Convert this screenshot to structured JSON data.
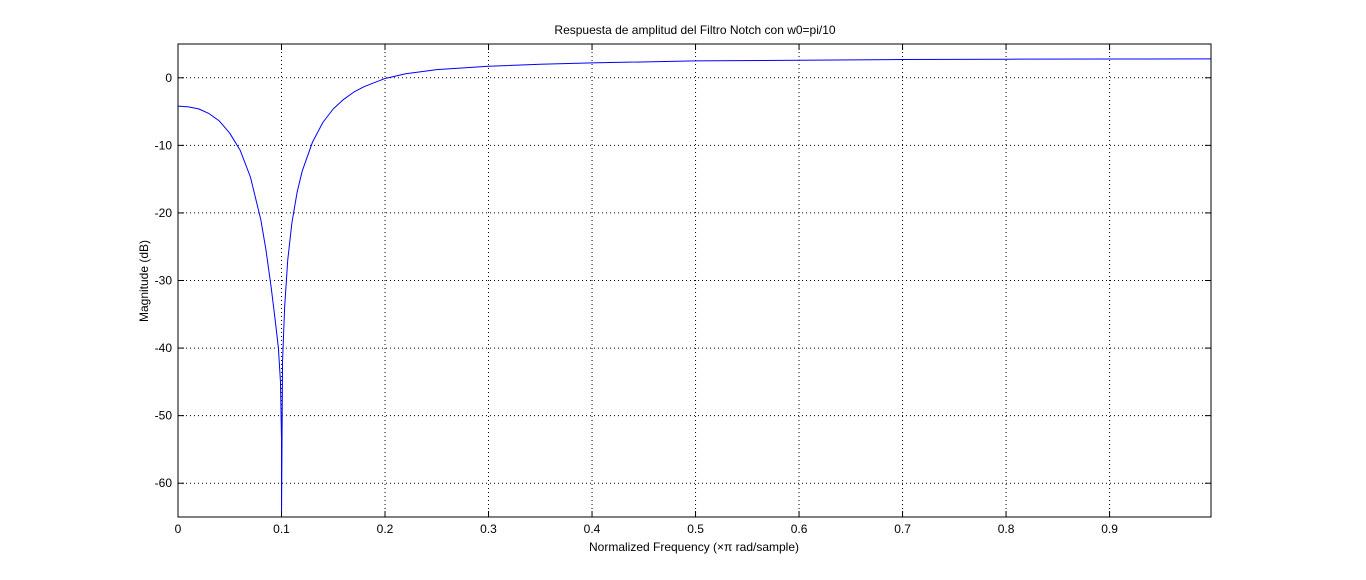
{
  "chart_data": {
    "type": "line",
    "title": "Respuesta de amplitud del Filtro Notch con w0=pi/10",
    "xlabel": "Normalized Frequency (×π rad/sample)",
    "ylabel": "Magnitude (dB)",
    "xlim": [
      0,
      0.998
    ],
    "ylim": [
      -65,
      5
    ],
    "xticks": [
      0,
      0.1,
      0.2,
      0.3,
      0.4,
      0.5,
      0.6,
      0.7,
      0.8,
      0.9
    ],
    "xtick_labels": [
      "0",
      "0.1",
      "0.2",
      "0.3",
      "0.4",
      "0.5",
      "0.6",
      "0.7",
      "0.8",
      "0.9"
    ],
    "yticks": [
      0,
      -10,
      -20,
      -30,
      -40,
      -50,
      -60
    ],
    "ytick_labels": [
      "0",
      "-10",
      "-20",
      "-30",
      "-40",
      "-50",
      "-60"
    ],
    "grid": true,
    "grid_style": "dotted",
    "line_color": "#0000ff",
    "series": [
      {
        "x": [
          0,
          0.01,
          0.02,
          0.03,
          0.04,
          0.05,
          0.06,
          0.07,
          0.08,
          0.085,
          0.09,
          0.094,
          0.097,
          0.099,
          0.1,
          0.1,
          0.101,
          0.103,
          0.106,
          0.11,
          0.115,
          0.12,
          0.13,
          0.14,
          0.15,
          0.16,
          0.17,
          0.18,
          0.2,
          0.22,
          0.25,
          0.3,
          0.35,
          0.4,
          0.5,
          0.6,
          0.7,
          0.8,
          0.9,
          0.998
        ],
        "y": [
          -4.2,
          -4.3,
          -4.6,
          -5.3,
          -6.4,
          -8.2,
          -10.7,
          -14.7,
          -21.0,
          -25.5,
          -31.0,
          -36.0,
          -40.0,
          -45.0,
          -53.5,
          -65.0,
          -42.0,
          -34.0,
          -27.0,
          -21.5,
          -17.0,
          -13.8,
          -9.5,
          -6.6,
          -4.6,
          -3.2,
          -2.1,
          -1.3,
          -0.1,
          0.6,
          1.2,
          1.7,
          2.0,
          2.2,
          2.5,
          2.6,
          2.7,
          2.75,
          2.78,
          2.8
        ]
      }
    ]
  }
}
